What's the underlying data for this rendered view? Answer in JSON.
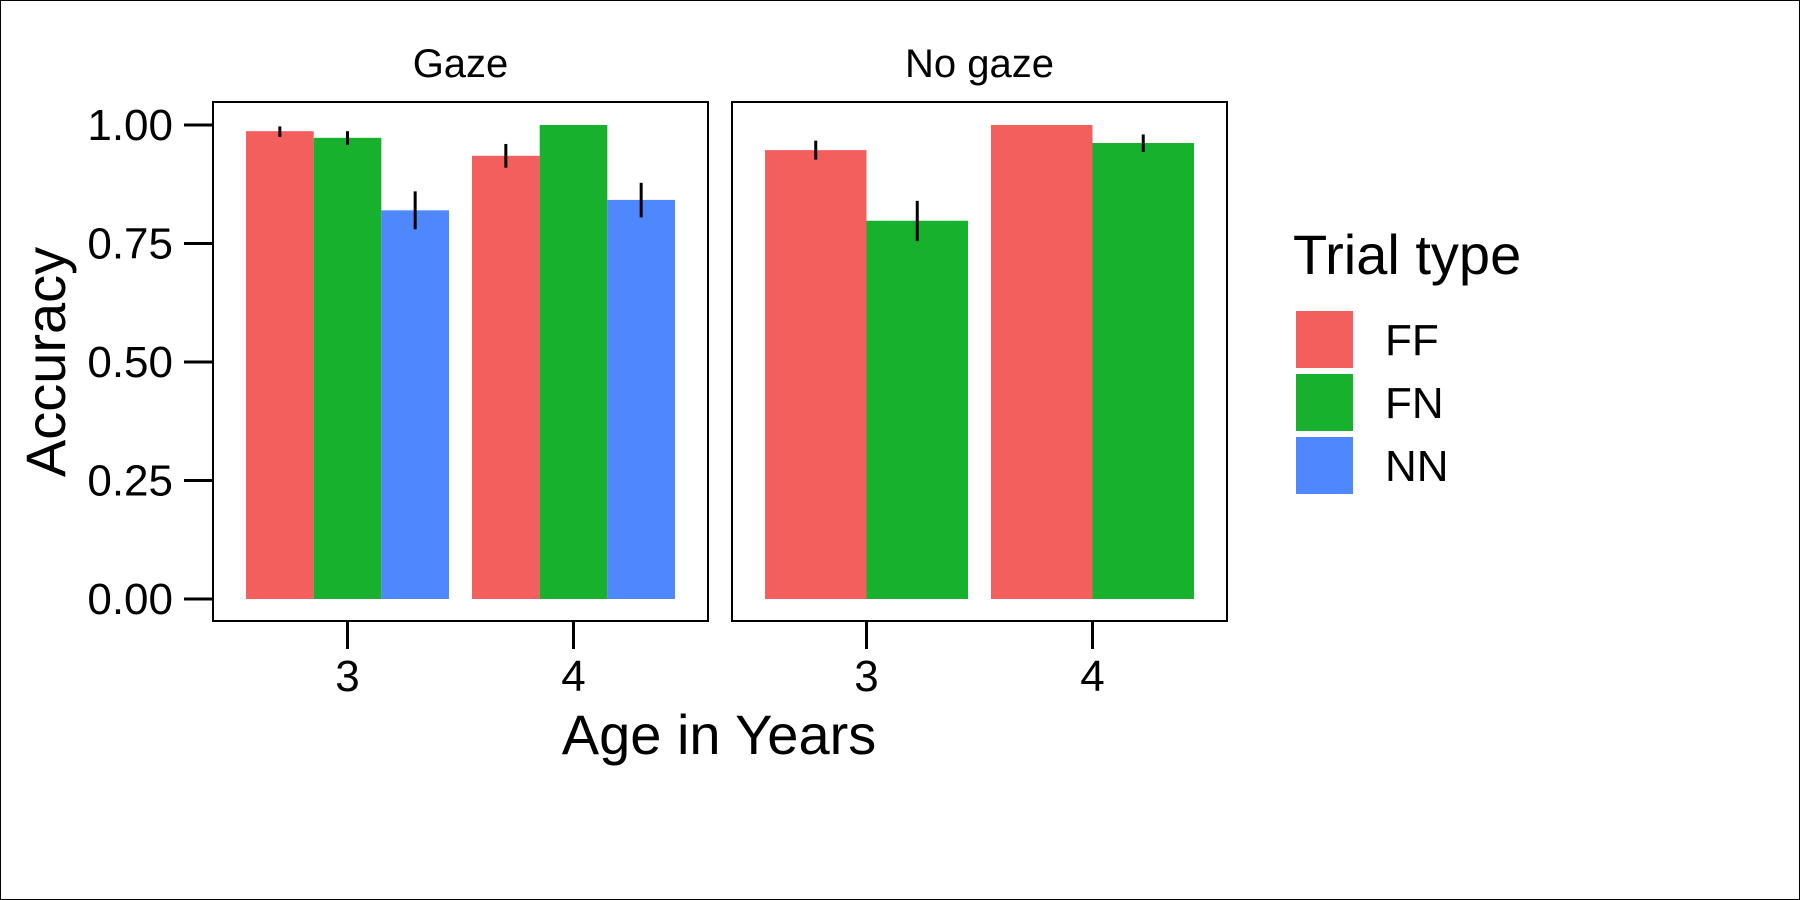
{
  "chart_data": {
    "type": "bar",
    "facets": [
      "Gaze",
      "No gaze"
    ],
    "categories": [
      "3",
      "4"
    ],
    "xlabel": "Age in Years",
    "ylabel": "Accuracy",
    "ylim": [
      0,
      1
    ],
    "yticks": [
      "0.00",
      "0.25",
      "0.50",
      "0.75",
      "1.00"
    ],
    "legend": {
      "title": "Trial type",
      "position": "right",
      "items": [
        {
          "name": "FF",
          "color": "#F25F5C"
        },
        {
          "name": "FN",
          "color": "#17B12E"
        },
        {
          "name": "NN",
          "color": "#4F87FF"
        }
      ]
    },
    "panels": [
      {
        "facet": "Gaze",
        "series": [
          {
            "name": "FF",
            "values": [
              0.987,
              0.935
            ],
            "error_low": [
              0.975,
              0.91
            ],
            "error_high": [
              0.997,
              0.96
            ]
          },
          {
            "name": "FN",
            "values": [
              0.973,
              1.0
            ],
            "error_low": [
              0.958,
              null
            ],
            "error_high": [
              0.987,
              null
            ]
          },
          {
            "name": "NN",
            "values": [
              0.82,
              0.842
            ],
            "error_low": [
              0.78,
              0.805
            ],
            "error_high": [
              0.86,
              0.878
            ]
          }
        ]
      },
      {
        "facet": "No gaze",
        "series": [
          {
            "name": "FF",
            "values": [
              0.947,
              1.0
            ],
            "error_low": [
              0.927,
              null
            ],
            "error_high": [
              0.967,
              null
            ]
          },
          {
            "name": "FN",
            "values": [
              0.798,
              0.962
            ],
            "error_low": [
              0.755,
              0.943
            ],
            "error_high": [
              0.84,
              0.98
            ]
          }
        ]
      }
    ],
    "grid": false
  }
}
